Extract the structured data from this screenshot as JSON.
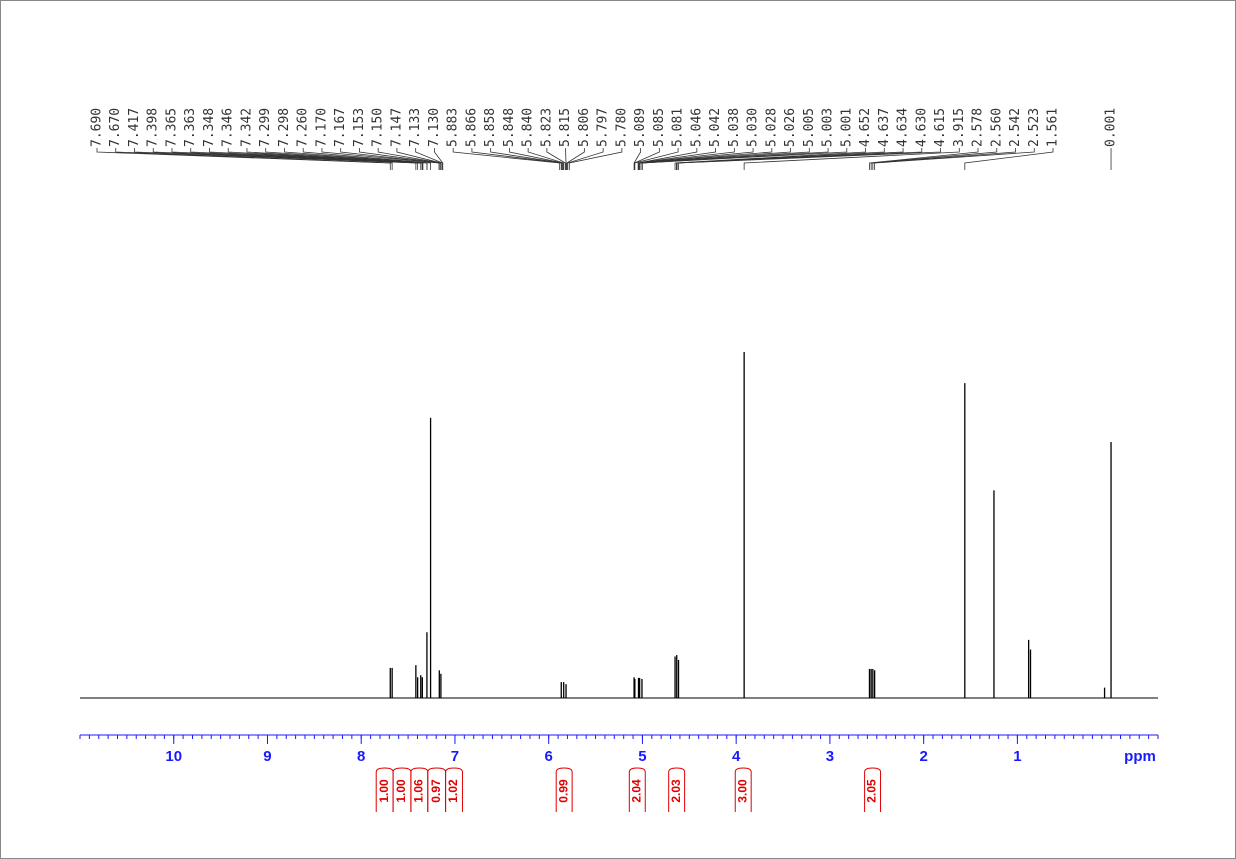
{
  "chart_data": {
    "type": "spectrum",
    "xlabel": "ppm",
    "xlim": [
      11.0,
      -0.5
    ],
    "xticks": [
      10,
      9,
      8,
      7,
      6,
      5,
      4,
      3,
      2,
      1
    ],
    "xminor": 0.1,
    "ylim": [
      0,
      100
    ],
    "axis_color": "#1a1aff",
    "color": "#000000",
    "x": [
      7.69,
      7.67,
      7.417,
      7.398,
      7.365,
      7.348,
      7.299,
      7.26,
      7.167,
      7.15,
      5.866,
      5.84,
      5.815,
      5.089,
      5.081,
      5.042,
      5.03,
      5.005,
      4.652,
      4.634,
      4.615,
      3.915,
      2.578,
      2.56,
      2.542,
      2.523,
      1.561,
      1.25,
      0.88,
      0.86,
      0.07,
      0.001
    ],
    "values": [
      8.7,
      8.7,
      9.5,
      6,
      6.6,
      6,
      19,
      81,
      8,
      7,
      4.6,
      4.6,
      4,
      6,
      5.5,
      5.8,
      5.8,
      5.5,
      12,
      12.4,
      11,
      100,
      8.4,
      8.4,
      8.4,
      8,
      91,
      60,
      16.8,
      14,
      3,
      74
    ],
    "peak_labels": [
      {
        "value": 7.69,
        "label": "7.690"
      },
      {
        "value": 7.67,
        "label": "7.670"
      },
      7.417,
      7.398,
      7.365,
      7.363,
      7.348,
      7.346,
      7.342,
      7.299,
      7.298,
      {
        "value": 7.26,
        "label": "7.260"
      },
      {
        "value": 7.17,
        "label": "7.170"
      },
      7.167,
      7.153,
      {
        "value": 7.15,
        "label": "7.150"
      },
      7.147,
      7.133,
      {
        "value": 7.13,
        "label": "7.130"
      },
      5.883,
      5.866,
      5.858,
      5.848,
      {
        "value": 5.84,
        "label": "5.840"
      },
      5.823,
      5.815,
      5.806,
      5.797,
      {
        "value": 5.78,
        "label": "5.780"
      },
      5.089,
      5.085,
      5.081,
      5.046,
      5.042,
      5.038,
      {
        "value": 5.03,
        "label": "5.030"
      },
      5.028,
      5.026,
      5.005,
      5.003,
      5.001,
      4.652,
      4.637,
      4.634,
      {
        "value": 4.63,
        "label": "4.630"
      },
      4.615,
      3.915,
      2.578,
      {
        "value": 2.56,
        "label": "2.560"
      },
      2.542,
      2.523,
      1.561
    ],
    "reference_label": 0.001,
    "integral_color": "#e00000",
    "integrals": {
      "values": [
        {
          "value": 1,
          "label": "1.00"
        },
        {
          "value": 1,
          "label": "1.00"
        },
        {
          "value": 1.06,
          "label": "1.06"
        },
        {
          "value": 0.97,
          "label": "0.97"
        },
        {
          "value": 1.02,
          "label": "1.02"
        },
        {
          "value": 0.99,
          "label": "0.99"
        },
        {
          "value": 2.04,
          "label": "2.04"
        },
        {
          "value": 2.03,
          "label": "2.03"
        },
        {
          "value": 3,
          "label": "3.00"
        },
        {
          "value": 2.05,
          "label": "2.05"
        }
      ],
      "ranges": [
        [
          7.84,
          7.66
        ],
        [
          7.66,
          7.47
        ],
        [
          7.47,
          7.29
        ],
        [
          7.29,
          7.1
        ],
        [
          7.1,
          6.92
        ],
        [
          5.92,
          5.75
        ],
        [
          5.14,
          4.97
        ],
        [
          4.72,
          4.55
        ],
        [
          4.01,
          3.84
        ],
        [
          2.63,
          2.46
        ]
      ]
    }
  }
}
